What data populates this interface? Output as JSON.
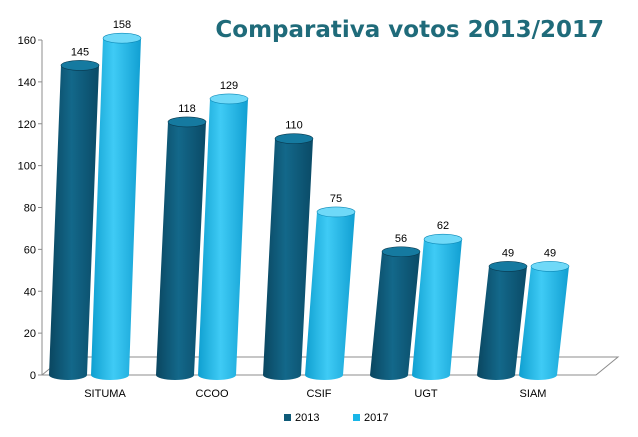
{
  "chart_data": {
    "type": "bar",
    "title": "Comparativa votos 2013/2017",
    "categories": [
      "SITUMA",
      "CCOO",
      "CSIF",
      "UGT",
      "SIAM"
    ],
    "series": [
      {
        "name": "2013",
        "values": [
          145,
          118,
          110,
          56,
          49
        ],
        "color": "#0e5a78"
      },
      {
        "name": "2017",
        "values": [
          158,
          129,
          75,
          62,
          49
        ],
        "color": "#19b6e8"
      }
    ],
    "ylim": [
      0,
      160
    ],
    "yticks": [
      0,
      20,
      40,
      60,
      80,
      100,
      120,
      140,
      160
    ],
    "xlabel": "",
    "ylabel": "",
    "legend": "bottom",
    "grid": false
  }
}
